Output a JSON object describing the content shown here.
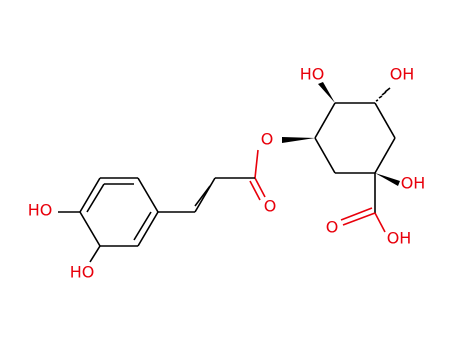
{
  "labels": [
    "HO",
    "OH",
    "O",
    "O",
    "OH",
    "O",
    "OH",
    "HO",
    "HO"
  ]
}
